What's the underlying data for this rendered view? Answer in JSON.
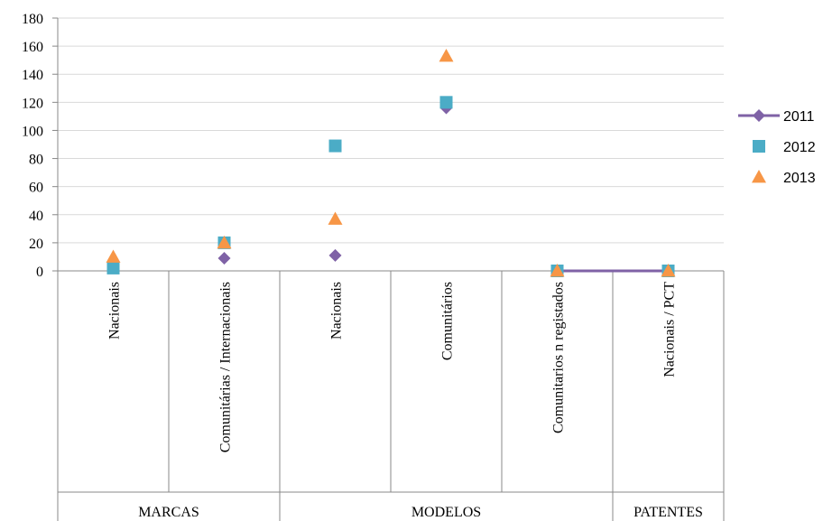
{
  "chart_data": {
    "type": "line",
    "title": "",
    "xlabel": "",
    "ylabel": "",
    "ylim": [
      0,
      180
    ],
    "yticks": [
      0,
      20,
      40,
      60,
      80,
      100,
      120,
      140,
      160,
      180
    ],
    "grid": true,
    "legend_position": "right",
    "groups": [
      {
        "label": "MARCAS",
        "span": 2
      },
      {
        "label": "MODELOS",
        "span": 3
      },
      {
        "label": "PATENTES",
        "span": 1
      }
    ],
    "categories": [
      "Nacionais",
      "Comunitárias / Internacionais",
      "Nacionais",
      "Comunitários",
      "Comunitarios n registados",
      "Nacionais / PCT"
    ],
    "series": [
      {
        "name": "2011",
        "marker": "diamond",
        "color": "#7f62a6",
        "values": [
          null,
          9,
          11,
          116,
          0,
          0
        ],
        "line_segments": [
          [
            4,
            5
          ]
        ]
      },
      {
        "name": "2012",
        "marker": "square",
        "color": "#4bacc6",
        "values": [
          2,
          20,
          89,
          120,
          0,
          0
        ]
      },
      {
        "name": "2013",
        "marker": "triangle",
        "color": "#f79646",
        "values": [
          10,
          20,
          37,
          153,
          0,
          0
        ]
      }
    ]
  }
}
